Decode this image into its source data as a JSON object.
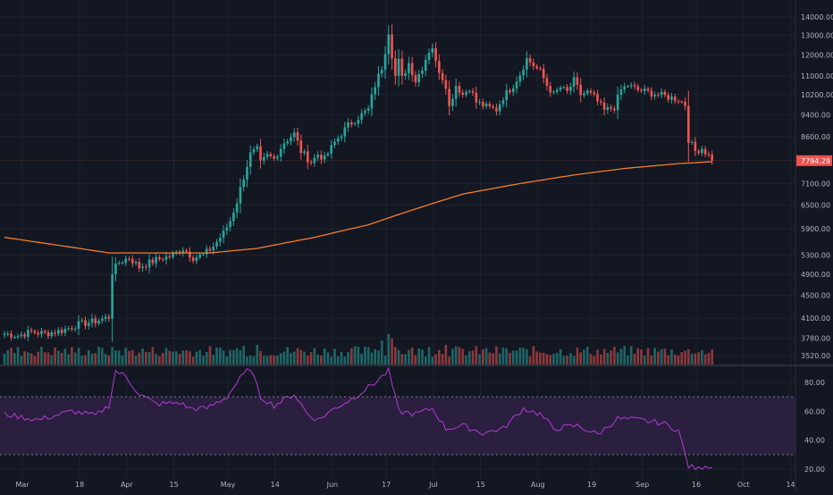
{
  "chart_data": {
    "type": "candlestick",
    "price_axis": {
      "ticks": [
        14000,
        13000,
        12000,
        11000,
        10200,
        9400,
        8600,
        7100,
        6500,
        5900,
        5300,
        4900,
        4500,
        4100,
        3780,
        3520
      ],
      "tick_labels": [
        "14000.00",
        "13000.00",
        "12000.00",
        "11000.00",
        "10200.00",
        "9400.00",
        "8600.00",
        "7100.00",
        "6500.00",
        "5900.00",
        "5300.00",
        "4900.00",
        "4500.00",
        "4100.00",
        "3780.00",
        "3520.00"
      ],
      "scale": "log"
    },
    "last_price": 7794.29,
    "last_price_label": "7794.29",
    "x_axis": {
      "labels": [
        "Mar",
        "18",
        "Apr",
        "15",
        "May",
        "14",
        "Jun",
        "17",
        "Jul",
        "15",
        "Aug",
        "19",
        "Sep",
        "16",
        "Oct",
        "14"
      ],
      "label_day_index": [
        0,
        17,
        31,
        45,
        61,
        75,
        92,
        108,
        122,
        136,
        153,
        169,
        184,
        200,
        214,
        228
      ],
      "start_date": "2019-03-01",
      "days_shown": 215
    },
    "price_keypoints": [
      {
        "day": 0,
        "value": 3850
      },
      {
        "day": 4,
        "value": 3820
      },
      {
        "day": 8,
        "value": 3880
      },
      {
        "day": 12,
        "value": 3850
      },
      {
        "day": 17,
        "value": 3900
      },
      {
        "day": 22,
        "value": 4000
      },
      {
        "day": 27,
        "value": 4050
      },
      {
        "day": 31,
        "value": 4120
      },
      {
        "day": 32,
        "value": 4950
      },
      {
        "day": 34,
        "value": 5150
      },
      {
        "day": 37,
        "value": 5250
      },
      {
        "day": 40,
        "value": 5050
      },
      {
        "day": 45,
        "value": 5200
      },
      {
        "day": 50,
        "value": 5300
      },
      {
        "day": 53,
        "value": 5450
      },
      {
        "day": 56,
        "value": 5250
      },
      {
        "day": 59,
        "value": 5300
      },
      {
        "day": 62,
        "value": 5500
      },
      {
        "day": 65,
        "value": 5800
      },
      {
        "day": 67,
        "value": 6100
      },
      {
        "day": 69,
        "value": 6600
      },
      {
        "day": 71,
        "value": 7300
      },
      {
        "day": 73,
        "value": 8000
      },
      {
        "day": 75,
        "value": 8150
      },
      {
        "day": 76,
        "value": 7700
      },
      {
        "day": 78,
        "value": 7950
      },
      {
        "day": 80,
        "value": 7850
      },
      {
        "day": 83,
        "value": 8400
      },
      {
        "day": 86,
        "value": 8700
      },
      {
        "day": 88,
        "value": 8100
      },
      {
        "day": 91,
        "value": 7750
      },
      {
        "day": 93,
        "value": 8000
      },
      {
        "day": 95,
        "value": 7850
      },
      {
        "day": 98,
        "value": 8400
      },
      {
        "day": 102,
        "value": 9000
      },
      {
        "day": 105,
        "value": 9300
      },
      {
        "day": 108,
        "value": 9600
      },
      {
        "day": 110,
        "value": 10600
      },
      {
        "day": 112,
        "value": 11400
      },
      {
        "day": 113,
        "value": 12200
      },
      {
        "day": 114,
        "value": 13200
      },
      {
        "day": 115,
        "value": 12000
      },
      {
        "day": 116,
        "value": 11000
      },
      {
        "day": 117,
        "value": 11700
      },
      {
        "day": 118,
        "value": 10900
      },
      {
        "day": 120,
        "value": 11600
      },
      {
        "day": 122,
        "value": 10800
      },
      {
        "day": 124,
        "value": 11400
      },
      {
        "day": 126,
        "value": 12200
      },
      {
        "day": 127,
        "value": 12400
      },
      {
        "day": 128,
        "value": 11600
      },
      {
        "day": 131,
        "value": 10600
      },
      {
        "day": 132,
        "value": 9700
      },
      {
        "day": 134,
        "value": 10600
      },
      {
        "day": 136,
        "value": 10200
      },
      {
        "day": 138,
        "value": 10500
      },
      {
        "day": 140,
        "value": 9900
      },
      {
        "day": 143,
        "value": 9700
      },
      {
        "day": 146,
        "value": 9600
      },
      {
        "day": 148,
        "value": 10100
      },
      {
        "day": 151,
        "value": 10600
      },
      {
        "day": 153,
        "value": 11100
      },
      {
        "day": 155,
        "value": 11800
      },
      {
        "day": 157,
        "value": 11500
      },
      {
        "day": 159,
        "value": 11200
      },
      {
        "day": 161,
        "value": 10600
      },
      {
        "day": 163,
        "value": 10200
      },
      {
        "day": 165,
        "value": 10500
      },
      {
        "day": 167,
        "value": 10300
      },
      {
        "day": 169,
        "value": 10800
      },
      {
        "day": 171,
        "value": 10200
      },
      {
        "day": 173,
        "value": 10300
      },
      {
        "day": 175,
        "value": 10100
      },
      {
        "day": 178,
        "value": 9550
      },
      {
        "day": 181,
        "value": 9700
      },
      {
        "day": 183,
        "value": 10400
      },
      {
        "day": 185,
        "value": 10600
      },
      {
        "day": 188,
        "value": 10400
      },
      {
        "day": 191,
        "value": 10300
      },
      {
        "day": 194,
        "value": 10200
      },
      {
        "day": 197,
        "value": 10100
      },
      {
        "day": 200,
        "value": 10000
      },
      {
        "day": 202,
        "value": 9800
      },
      {
        "day": 203,
        "value": 8500
      },
      {
        "day": 205,
        "value": 8100
      },
      {
        "day": 207,
        "value": 8200
      },
      {
        "day": 209,
        "value": 7950
      },
      {
        "day": 210,
        "value": 7794
      }
    ],
    "ma_keypoints": [
      {
        "day": 0,
        "value": 5700
      },
      {
        "day": 31,
        "value": 5350
      },
      {
        "day": 61,
        "value": 5350
      },
      {
        "day": 75,
        "value": 5450
      },
      {
        "day": 92,
        "value": 5700
      },
      {
        "day": 108,
        "value": 6000
      },
      {
        "day": 122,
        "value": 6400
      },
      {
        "day": 136,
        "value": 6800
      },
      {
        "day": 153,
        "value": 7100
      },
      {
        "day": 169,
        "value": 7350
      },
      {
        "day": 184,
        "value": 7550
      },
      {
        "day": 200,
        "value": 7700
      },
      {
        "day": 210,
        "value": 7760
      }
    ],
    "rsi": {
      "ticks": [
        80,
        60,
        40,
        20
      ],
      "tick_labels": [
        "80.00",
        "60.00",
        "40.00",
        "20.00"
      ],
      "ylim": [
        15,
        90
      ],
      "upper_band": 70,
      "lower_band": 30,
      "keypoints": [
        {
          "day": 0,
          "value": 58
        },
        {
          "day": 10,
          "value": 54
        },
        {
          "day": 20,
          "value": 60
        },
        {
          "day": 27,
          "value": 57
        },
        {
          "day": 31,
          "value": 64
        },
        {
          "day": 33,
          "value": 88
        },
        {
          "day": 36,
          "value": 84
        },
        {
          "day": 40,
          "value": 72
        },
        {
          "day": 45,
          "value": 65
        },
        {
          "day": 52,
          "value": 66
        },
        {
          "day": 55,
          "value": 62
        },
        {
          "day": 60,
          "value": 62
        },
        {
          "day": 66,
          "value": 70
        },
        {
          "day": 70,
          "value": 83
        },
        {
          "day": 73,
          "value": 90
        },
        {
          "day": 76,
          "value": 70
        },
        {
          "day": 80,
          "value": 64
        },
        {
          "day": 86,
          "value": 72
        },
        {
          "day": 90,
          "value": 58
        },
        {
          "day": 93,
          "value": 54
        },
        {
          "day": 98,
          "value": 62
        },
        {
          "day": 104,
          "value": 70
        },
        {
          "day": 110,
          "value": 80
        },
        {
          "day": 114,
          "value": 88
        },
        {
          "day": 117,
          "value": 60
        },
        {
          "day": 122,
          "value": 58
        },
        {
          "day": 127,
          "value": 62
        },
        {
          "day": 131,
          "value": 48
        },
        {
          "day": 136,
          "value": 50
        },
        {
          "day": 142,
          "value": 45
        },
        {
          "day": 148,
          "value": 48
        },
        {
          "day": 154,
          "value": 62
        },
        {
          "day": 159,
          "value": 58
        },
        {
          "day": 163,
          "value": 48
        },
        {
          "day": 170,
          "value": 50
        },
        {
          "day": 176,
          "value": 44
        },
        {
          "day": 182,
          "value": 55
        },
        {
          "day": 188,
          "value": 54
        },
        {
          "day": 195,
          "value": 52
        },
        {
          "day": 200,
          "value": 47
        },
        {
          "day": 203,
          "value": 22
        },
        {
          "day": 206,
          "value": 20
        },
        {
          "day": 208,
          "value": 23
        },
        {
          "day": 210,
          "value": 21
        }
      ]
    },
    "volume_spikes": [
      {
        "day": 0,
        "value": 1.0
      },
      {
        "day": 32,
        "value": 1.6
      },
      {
        "day": 33,
        "value": 1.3
      },
      {
        "day": 69,
        "value": 1.5
      },
      {
        "day": 71,
        "value": 1.7
      },
      {
        "day": 75,
        "value": 1.8
      },
      {
        "day": 110,
        "value": 1.4
      },
      {
        "day": 112,
        "value": 2.2
      },
      {
        "day": 114,
        "value": 2.8
      },
      {
        "day": 115,
        "value": 2.4
      },
      {
        "day": 116,
        "value": 1.6
      },
      {
        "day": 126,
        "value": 1.6
      },
      {
        "day": 131,
        "value": 1.8
      },
      {
        "day": 203,
        "value": 1.4
      },
      {
        "day": 205,
        "value": 1.0
      }
    ],
    "colors": {
      "background": "#131722",
      "up": "#26a69a",
      "down": "#ef5350",
      "wick": "#d1d4dc",
      "ma": "#f57c2e",
      "rsi_line": "#b23bd6",
      "rsi_band": "#2a1f3f",
      "grid": "#1e2230",
      "axis_text": "#b2b5be",
      "price_tag": "#ef5350"
    }
  }
}
